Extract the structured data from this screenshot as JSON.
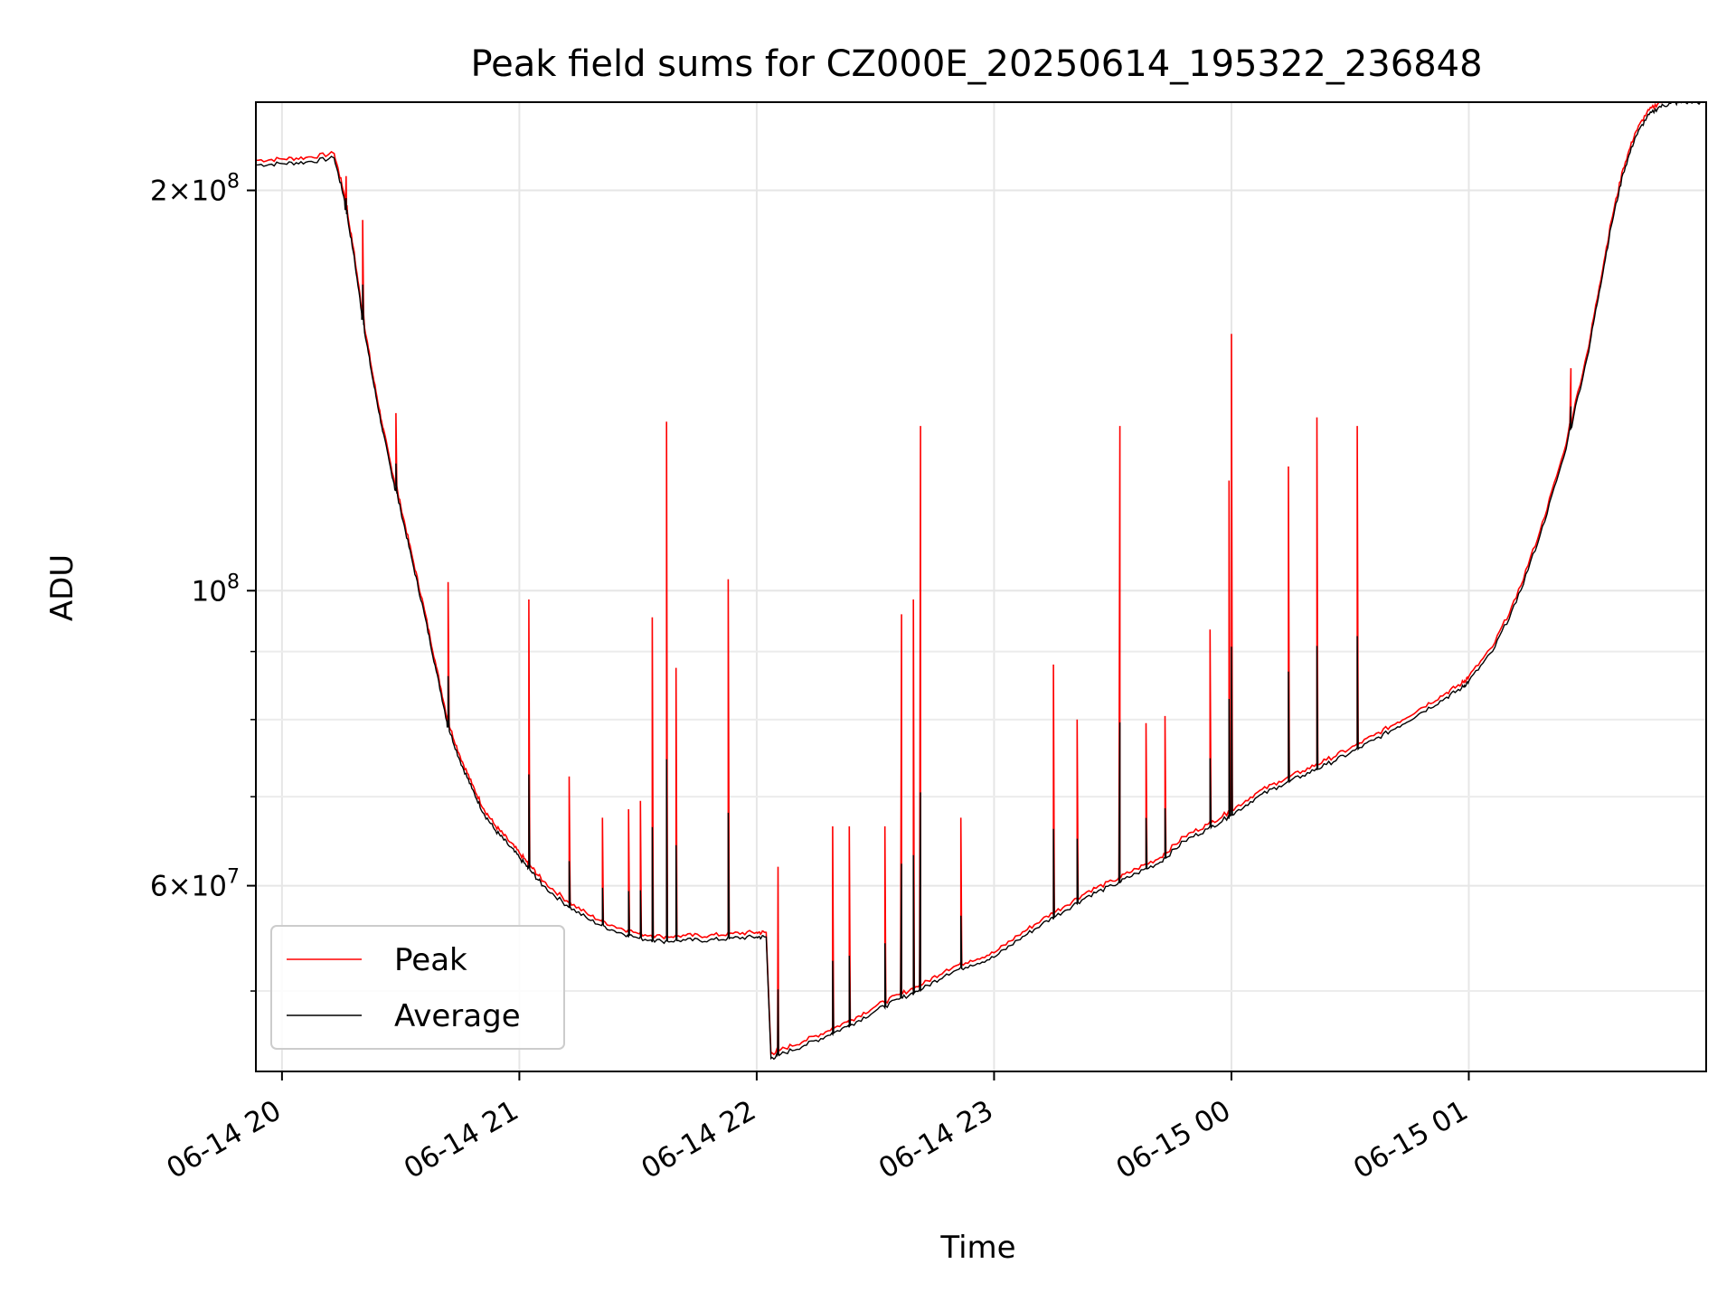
{
  "chart_data": {
    "type": "line",
    "title": "Peak field sums for CZ000E_20250614_195322_236848",
    "xlabel": "Time",
    "ylabel": "ADU",
    "yscale": "log",
    "ylim": [
      43500000,
      233000000
    ],
    "y_major_ticks": [
      {
        "value": 200000000,
        "mant": "2×10",
        "exp": "8"
      },
      {
        "value": 100000000,
        "mant": "10",
        "exp": "8"
      },
      {
        "value": 60000000,
        "mant": "6×10",
        "exp": "7"
      }
    ],
    "y_minor_ticks": [
      40000000,
      50000000,
      70000000,
      80000000,
      90000000
    ],
    "x_unit": "hours since 06-14 20:00",
    "xlim": [
      -0.11,
      6.0
    ],
    "x_ticks": [
      {
        "value": 0,
        "label": "06-14 20"
      },
      {
        "value": 1,
        "label": "06-14 21"
      },
      {
        "value": 2,
        "label": "06-14 22"
      },
      {
        "value": 3,
        "label": "06-14 23"
      },
      {
        "value": 4,
        "label": "06-15 00"
      },
      {
        "value": 5,
        "label": "06-15 01"
      }
    ],
    "grid": true,
    "legend": {
      "position": "lower-left"
    },
    "series": [
      {
        "name": "Average",
        "color": "#000000",
        "x": [
          -0.11,
          0.0,
          0.1,
          0.22,
          0.26,
          0.3,
          0.34,
          0.38,
          0.42,
          0.46,
          0.5,
          0.55,
          0.6,
          0.65,
          0.7,
          0.75,
          0.8,
          0.85,
          0.9,
          0.95,
          1.0,
          1.05,
          1.1,
          1.2,
          1.3,
          1.4,
          1.5,
          1.6,
          1.7,
          1.8,
          1.9,
          2.0,
          2.04,
          2.06,
          2.1,
          2.2,
          2.3,
          2.4,
          2.5,
          2.6,
          2.7,
          2.8,
          2.9,
          3.0,
          3.1,
          3.2,
          3.3,
          3.4,
          3.5,
          3.6,
          3.7,
          3.8,
          3.9,
          4.0,
          4.1,
          4.2,
          4.3,
          4.4,
          4.5,
          4.6,
          4.7,
          4.8,
          4.9,
          4.97,
          5.0,
          5.1,
          5.2,
          5.3,
          5.4,
          5.5,
          5.55,
          5.6,
          5.65,
          5.7,
          5.75,
          5.8,
          5.85,
          5.9,
          6.0
        ],
        "y": [
          209000000,
          209500000,
          210000000,
          211500000,
          198000000,
          180000000,
          160000000,
          145000000,
          133000000,
          123000000,
          115000000,
          105000000,
          96000000,
          87000000,
          79000000,
          74500000,
          71000000,
          68000000,
          66000000,
          64500000,
          63000000,
          61500000,
          60000000,
          58000000,
          56500000,
          55500000,
          54800000,
          54500000,
          54600000,
          54600000,
          54800000,
          54900000,
          54900000,
          44500000,
          44800000,
          45500000,
          46300000,
          47200000,
          48300000,
          49300000,
          50200000,
          51500000,
          52300000,
          53000000,
          54600000,
          56100000,
          57500000,
          59000000,
          60000000,
          61300000,
          62500000,
          64800000,
          66200000,
          67800000,
          69800000,
          71300000,
          72600000,
          74000000,
          75500000,
          77200000,
          79000000,
          81000000,
          83000000,
          84500000,
          85500000,
          90000000,
          98000000,
          110000000,
          126000000,
          150000000,
          168000000,
          188000000,
          206000000,
          219000000,
          227000000,
          231000000,
          232500000,
          233000000,
          233000000
        ]
      },
      {
        "name": "Peak",
        "color": "#ff0000",
        "spikes": [
          {
            "x": 0.27,
            "y": 205000000
          },
          {
            "x": 0.34,
            "y": 190000000
          },
          {
            "x": 0.48,
            "y": 136000000
          },
          {
            "x": 0.7,
            "y": 101500000
          },
          {
            "x": 1.04,
            "y": 98500000
          },
          {
            "x": 1.21,
            "y": 72500000
          },
          {
            "x": 1.35,
            "y": 67500000
          },
          {
            "x": 1.46,
            "y": 68500000
          },
          {
            "x": 1.51,
            "y": 69500000
          },
          {
            "x": 1.56,
            "y": 95500000
          },
          {
            "x": 1.62,
            "y": 134000000
          },
          {
            "x": 1.66,
            "y": 87500000
          },
          {
            "x": 1.88,
            "y": 102000000
          },
          {
            "x": 2.09,
            "y": 62000000
          },
          {
            "x": 2.32,
            "y": 66500000
          },
          {
            "x": 2.39,
            "y": 66500000
          },
          {
            "x": 2.54,
            "y": 66500000
          },
          {
            "x": 2.61,
            "y": 96000000
          },
          {
            "x": 2.66,
            "y": 98500000
          },
          {
            "x": 2.69,
            "y": 133000000
          },
          {
            "x": 2.86,
            "y": 67500000
          },
          {
            "x": 3.25,
            "y": 88000000
          },
          {
            "x": 3.35,
            "y": 80000000
          },
          {
            "x": 3.53,
            "y": 133000000
          },
          {
            "x": 3.64,
            "y": 79500000
          },
          {
            "x": 3.72,
            "y": 80500000
          },
          {
            "x": 3.91,
            "y": 93500000
          },
          {
            "x": 3.99,
            "y": 121000000
          },
          {
            "x": 4.0,
            "y": 156000000
          },
          {
            "x": 4.24,
            "y": 124000000
          },
          {
            "x": 4.36,
            "y": 135000000
          },
          {
            "x": 4.53,
            "y": 133000000
          },
          {
            "x": 5.43,
            "y": 147000000
          }
        ]
      }
    ]
  }
}
